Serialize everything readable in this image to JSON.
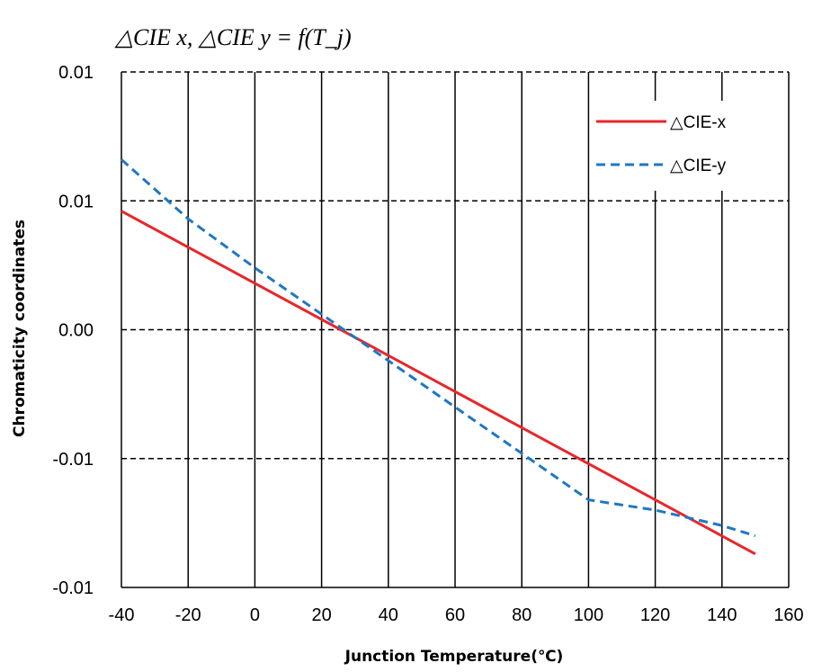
{
  "chart_data": {
    "type": "line",
    "title": "△CIE x, △CIE y = f(T_j)",
    "xlabel": "Junction Temperature(℃)",
    "ylabel": "Chromaticity coordinates",
    "xlim": [
      -40,
      160
    ],
    "ylim": [
      -0.01,
      0.01
    ],
    "x_ticks": [
      -40,
      -20,
      0,
      20,
      40,
      60,
      80,
      100,
      120,
      140,
      160
    ],
    "x_tick_labels": [
      "-40",
      "-20",
      "0",
      "20",
      "40",
      "60",
      "80",
      "100",
      "120",
      "140",
      "160"
    ],
    "y_ticks": [
      -0.01,
      -0.005,
      0.0,
      0.005,
      0.01
    ],
    "y_tick_labels": [
      "-0.01",
      "-0.01",
      "0.00",
      "0.01",
      "0.01"
    ],
    "grid": true,
    "legend_position": "top-right",
    "series": [
      {
        "name": "△CIE-x",
        "color": "#e8262b",
        "style": "solid",
        "x": [
          -40,
          150
        ],
        "y": [
          0.0046,
          -0.0087
        ]
      },
      {
        "name": "△CIE-y",
        "color": "#1f77c4",
        "style": "dashed",
        "x": [
          -40,
          -20,
          0,
          20,
          40,
          60,
          80,
          100,
          120,
          140,
          150
        ],
        "y": [
          0.0066,
          0.0043,
          0.0024,
          0.0006,
          -0.0012,
          -0.003,
          -0.0048,
          -0.0066,
          -0.007,
          -0.0076,
          -0.008
        ]
      }
    ]
  }
}
